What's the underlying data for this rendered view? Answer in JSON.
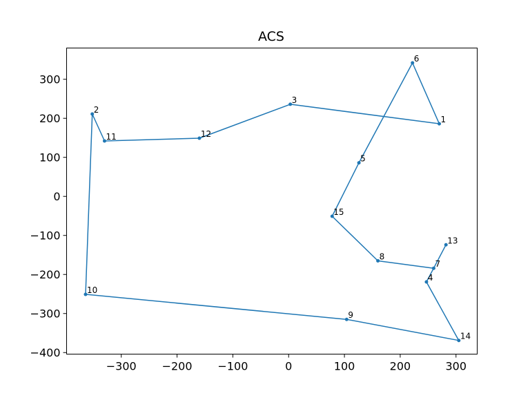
{
  "chart_data": {
    "type": "line",
    "title": "ACS",
    "xlabel": "",
    "ylabel": "",
    "xlim": [
      -398,
      338
    ],
    "ylim": [
      -404,
      380
    ],
    "xticks": [
      -300,
      -200,
      -100,
      0,
      100,
      200,
      300
    ],
    "yticks": [
      -400,
      -300,
      -200,
      -100,
      0,
      100,
      200,
      300
    ],
    "grid": false,
    "colors": {
      "line": "#1f77b4",
      "marker": "#1f77b4"
    },
    "points": [
      {
        "label": "1",
        "x": 270,
        "y": 186
      },
      {
        "label": "2",
        "x": -352,
        "y": 211
      },
      {
        "label": "3",
        "x": 3,
        "y": 236
      },
      {
        "label": "4",
        "x": 247,
        "y": -219
      },
      {
        "label": "5",
        "x": 126,
        "y": 86
      },
      {
        "label": "6",
        "x": 222,
        "y": 342
      },
      {
        "label": "7",
        "x": 260,
        "y": -184
      },
      {
        "label": "8",
        "x": 160,
        "y": -165
      },
      {
        "label": "9",
        "x": 104,
        "y": -315
      },
      {
        "label": "10",
        "x": -364,
        "y": -251
      },
      {
        "label": "11",
        "x": -330,
        "y": 142
      },
      {
        "label": "12",
        "x": -160,
        "y": 149
      },
      {
        "label": "13",
        "x": 282,
        "y": -124
      },
      {
        "label": "14",
        "x": 305,
        "y": -369
      },
      {
        "label": "15",
        "x": 78,
        "y": -51
      }
    ],
    "path_order": [
      "1",
      "3",
      "12",
      "11",
      "2",
      "10",
      "9",
      "14",
      "4",
      "7",
      "13",
      "7",
      "8",
      "15",
      "5",
      "6",
      "1"
    ]
  }
}
